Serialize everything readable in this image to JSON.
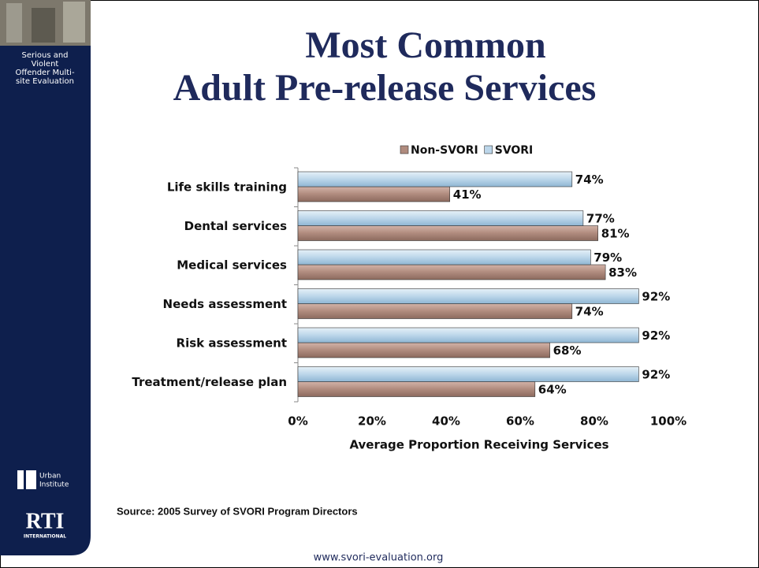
{
  "slide": {
    "title_lines": [
      "Most Common",
      "Adult Pre-release Services"
    ],
    "sidebar_lines": [
      "Serious and",
      "Violent",
      "Offender Multi-",
      "site Evaluation"
    ],
    "urban_lines": [
      "Urban",
      "Institute"
    ],
    "rti_lines": [
      "RTI",
      "INTERNATIONAL"
    ],
    "source": "Source: 2005 Survey of SVORI Program Directors",
    "footer": "www.svori-evaluation.org"
  },
  "chart_data": {
    "type": "hbar",
    "x_label": "Average Proportion Receiving Services",
    "categories": [
      "Life skills training",
      "Dental services",
      "Medical services",
      "Needs assessment",
      "Risk assessment",
      "Treatment/release plan"
    ],
    "series": [
      {
        "name": "Non-SVORI",
        "color": "#b08b7e",
        "values": [
          41,
          81,
          83,
          74,
          68,
          64
        ],
        "value_labels": [
          "41%",
          "81%",
          "83%",
          "74%",
          "68%",
          "64%"
        ]
      },
      {
        "name": "SVORI",
        "color": "#bcd6ea",
        "values": [
          74,
          77,
          79,
          92,
          92,
          92
        ],
        "value_labels": [
          "74%",
          "77%",
          "79%",
          "92%",
          "92%",
          "92%"
        ]
      }
    ],
    "xlim": [
      0,
      100
    ],
    "xticks": [
      {
        "value": 0,
        "label": "0%"
      },
      {
        "value": 20,
        "label": "20%"
      },
      {
        "value": 40,
        "label": "40%"
      },
      {
        "value": 60,
        "label": "60%"
      },
      {
        "value": 80,
        "label": "80%"
      },
      {
        "value": 100,
        "label": "100%"
      }
    ],
    "legend": "top"
  }
}
